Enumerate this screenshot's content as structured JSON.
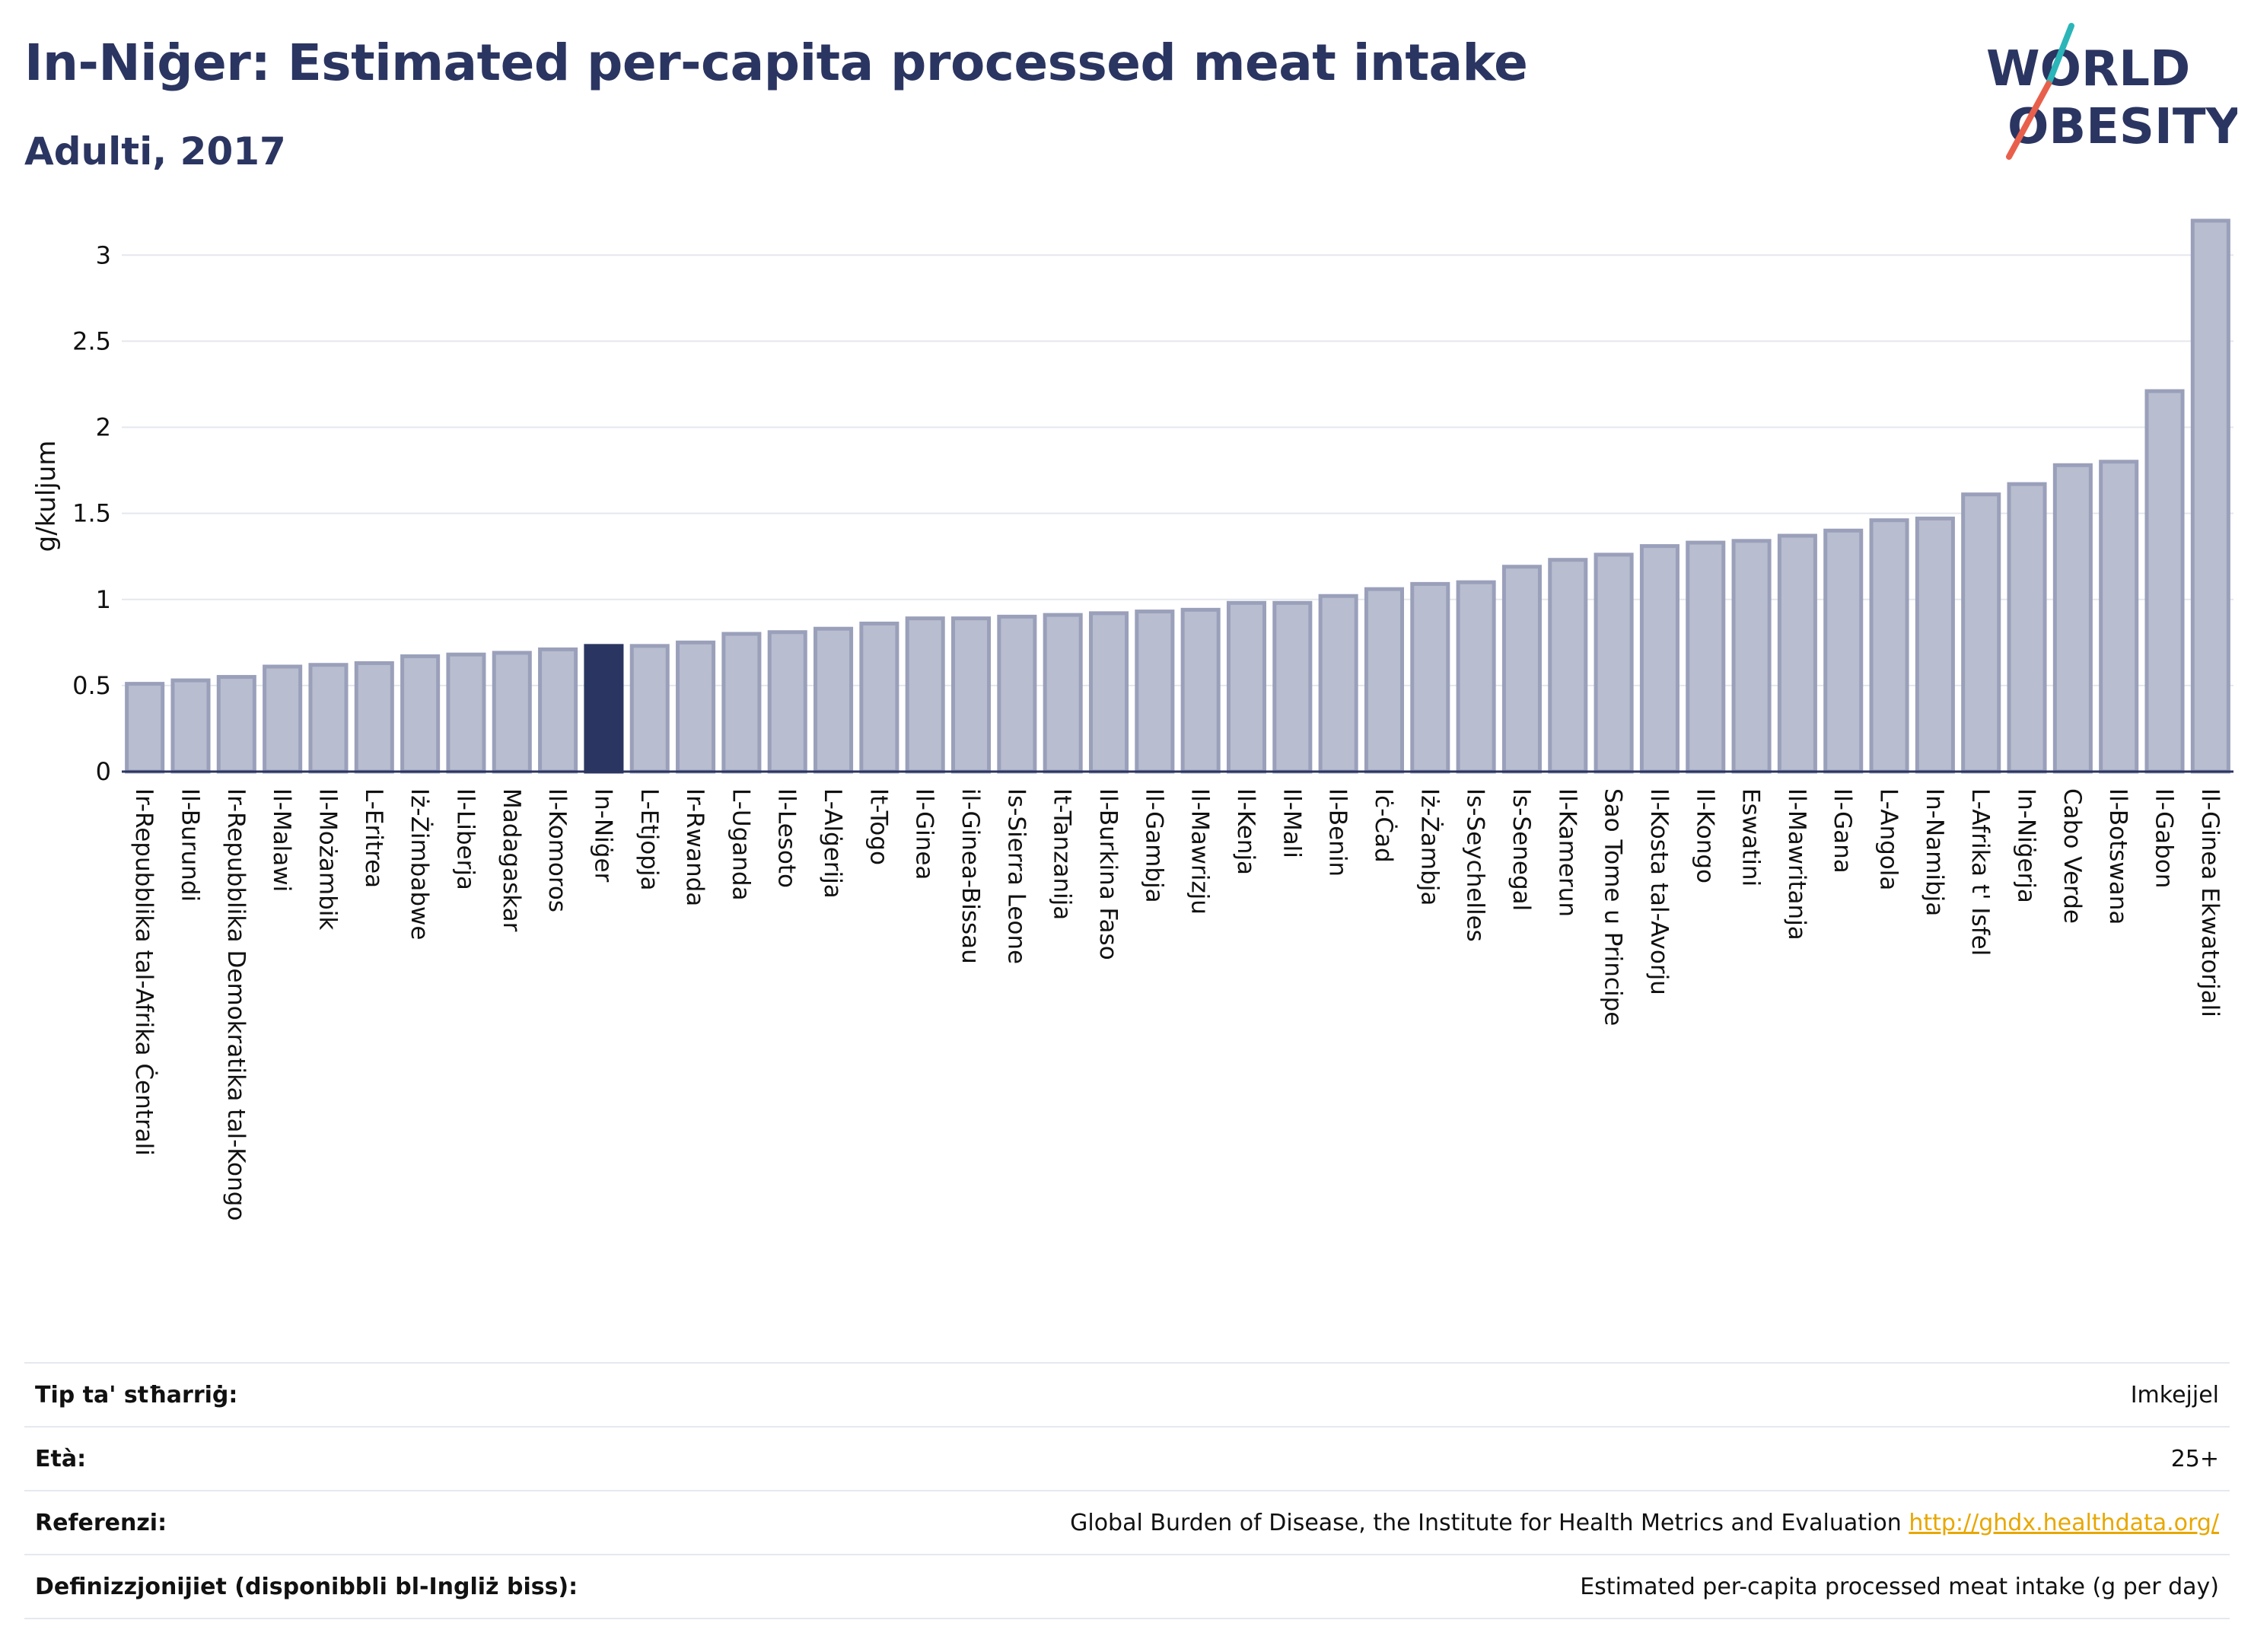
{
  "title": "In-Niġer: Estimated per-capita processed meat intake",
  "subtitle": "Adulti, 2017",
  "logo": {
    "line1": "WORLD",
    "line2": "OBESITY"
  },
  "colors": {
    "title": "#2b3561",
    "bar": "#b8bdcf",
    "bar_stroke": "#9aa0ba",
    "highlight": "#2b3561",
    "logo_teal": "#2bb5b8",
    "logo_red": "#e8604c",
    "link": "#e8a700"
  },
  "chart_data": {
    "type": "bar",
    "ylabel": "g/kuljum",
    "ylim": [
      0,
      3.2
    ],
    "yticks": [
      0,
      0.5,
      1,
      1.5,
      2,
      2.5,
      3
    ],
    "ytick_labels": [
      "0",
      "0.5",
      "1",
      "1.5",
      "2",
      "2.5",
      "3"
    ],
    "grid": true,
    "highlight_category": "In-Niġer",
    "categories": [
      "Ir-Repubblika tal-Afrika Ċentrali",
      "Il-Burundi",
      "Ir-Repubblika Demokratika tal-Kongo",
      "Il-Malawi",
      "Il-Możambik",
      "L-Eritrea",
      "Iż-Żimbabwe",
      "Il-Liberja",
      "Madagaskar",
      "Il-Komoros",
      "In-Niġer",
      "L-Etjopja",
      "Ir-Rwanda",
      "L-Uganda",
      "Il-Lesoto",
      "L-Alġerija",
      "It-Togo",
      "Il-Ginea",
      "il-Ginea-Bissau",
      "Is-Sierra Leone",
      "It-Tanzanija",
      "Il-Burkina Faso",
      "Il-Gambja",
      "Il-Mawrizju",
      "Il-Kenja",
      "Il-Mali",
      "Il-Benin",
      "Iċ-Ċad",
      "Iż-Żambja",
      "Is-Seychelles",
      "Is-Senegal",
      "Il-Kamerun",
      "Sao Tome u Principe",
      "Il-Kosta tal-Avorju",
      "Il-Kongo",
      "Eswatini",
      "Il-Mawritanja",
      "Il-Gana",
      "L-Angola",
      "In-Namibja",
      "L-Afrika t' Isfel",
      "In-Niġerja",
      "Cabo Verde",
      "Il-Botswana",
      "Il-Gabon",
      "Il-Ginea Ekwatorjali"
    ],
    "values": [
      0.51,
      0.53,
      0.55,
      0.61,
      0.62,
      0.63,
      0.67,
      0.68,
      0.69,
      0.71,
      0.73,
      0.73,
      0.75,
      0.8,
      0.81,
      0.83,
      0.86,
      0.89,
      0.89,
      0.9,
      0.91,
      0.92,
      0.93,
      0.94,
      0.98,
      0.98,
      1.02,
      1.06,
      1.09,
      1.1,
      1.19,
      1.23,
      1.26,
      1.31,
      1.33,
      1.34,
      1.37,
      1.4,
      1.46,
      1.47,
      1.61,
      1.67,
      1.78,
      1.8,
      2.21,
      3.2
    ]
  },
  "meta": [
    {
      "label": "Tip ta' stħarriġ:",
      "value": "Imkejjel"
    },
    {
      "label": "Età:",
      "value": "25+"
    },
    {
      "label": "Referenzi:",
      "value": "Global Burden of Disease, the Institute for Health Metrics and Evaluation",
      "link": "http://ghdx.healthdata.org/"
    },
    {
      "label": "Definizzjonijiet (disponibbli bl-Ingliż biss):",
      "value": "Estimated per-capita processed meat intake (g per day)"
    }
  ]
}
